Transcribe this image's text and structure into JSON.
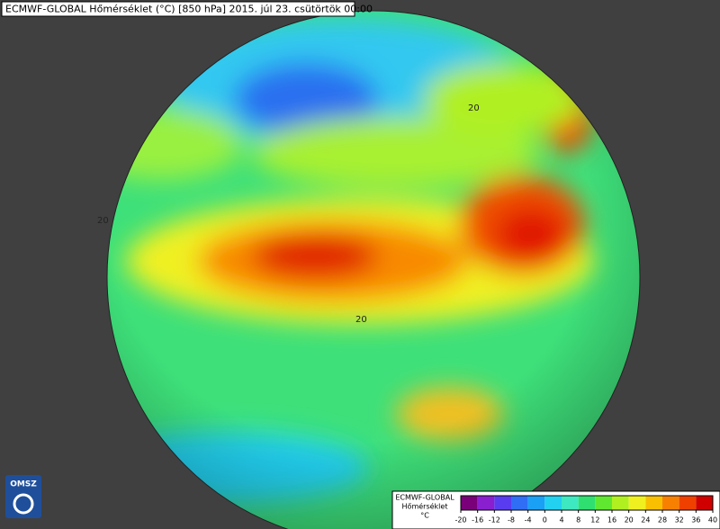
{
  "header": {
    "title": "ECMWF-GLOBAL Hőmérséklet (°C) [850 hPa] 2015. júl 23. csütörtök 00:00"
  },
  "logo": {
    "text": "OMSZ"
  },
  "contour_labels": [
    "20",
    "20",
    "20"
  ],
  "legend": {
    "model": "ECMWF-GLOBAL",
    "variable": "Hőmérséklet",
    "unit": "°C",
    "ticks": [
      -20,
      -16,
      -12,
      -8,
      -4,
      0,
      4,
      8,
      12,
      16,
      20,
      24,
      28,
      32,
      36,
      40
    ],
    "colors": [
      "#7a007a",
      "#8a1fd0",
      "#5a3cf0",
      "#2f6ef5",
      "#1aa0f5",
      "#22d0f0",
      "#3ee8c0",
      "#2fe070",
      "#60e830",
      "#b0f020",
      "#f0f020",
      "#f8c000",
      "#f88000",
      "#f04000",
      "#d00000"
    ]
  }
}
